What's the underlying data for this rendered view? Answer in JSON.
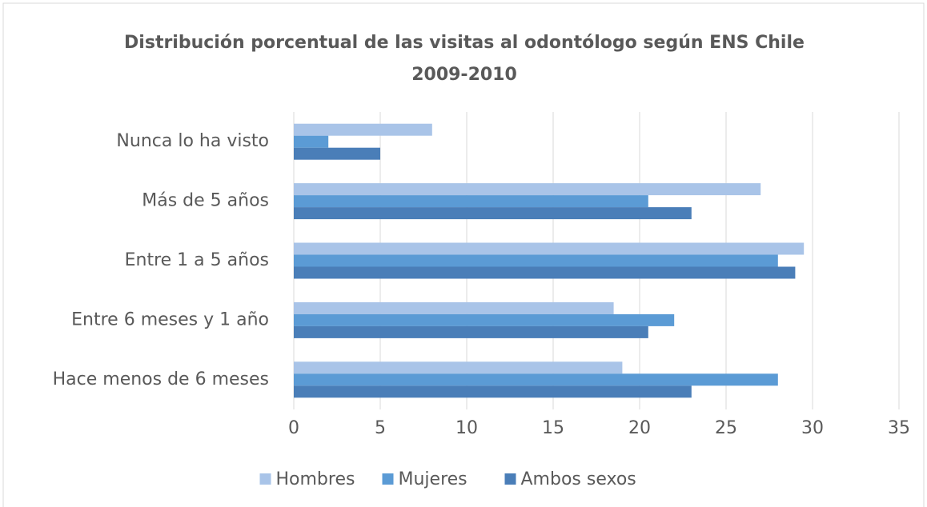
{
  "chart_data": {
    "type": "hbar",
    "title": "Distribución porcentual de las visitas al odontólogo según ENS Chile 2009-2010",
    "categories": [
      "Nunca lo ha visto",
      "Más de 5 años",
      "Entre 1 a 5 años",
      "Entre 6 meses y 1 año",
      "Hace menos de 6 meses"
    ],
    "series": [
      {
        "name": "Hombres",
        "color": "#a9c4e8",
        "values": [
          8,
          27,
          29.5,
          18.5,
          19
        ]
      },
      {
        "name": "Mujeres",
        "color": "#5b9bd5",
        "values": [
          2,
          20.5,
          28,
          22,
          28
        ]
      },
      {
        "name": "Ambos sexos",
        "color": "#4a7eb8",
        "values": [
          5,
          23,
          29,
          20.5,
          23
        ]
      }
    ],
    "xlim": [
      0,
      35
    ],
    "xticks": [
      0,
      5,
      10,
      15,
      20,
      25,
      30,
      35
    ],
    "grid": true,
    "legend": "bottom"
  }
}
